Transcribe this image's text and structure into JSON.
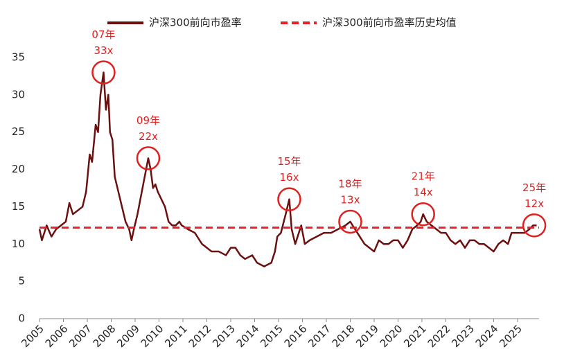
{
  "chart_data": {
    "type": "line",
    "xlim": [
      2005,
      2025.9
    ],
    "xticks": [
      2005,
      2006,
      2007,
      2008,
      2009,
      2010,
      2011,
      2012,
      2013,
      2014,
      2015,
      2016,
      2017,
      2018,
      2019,
      2020,
      2021,
      2022,
      2023,
      2024,
      2025
    ],
    "ylim": [
      0,
      35
    ],
    "yticks": [
      0,
      5,
      10,
      15,
      20,
      25,
      30,
      35
    ],
    "x": [
      2005.0,
      2005.1,
      2005.3,
      2005.5,
      2005.7,
      2005.9,
      2006.1,
      2006.25,
      2006.4,
      2006.6,
      2006.8,
      2006.95,
      2007.1,
      2007.2,
      2007.35,
      2007.45,
      2007.55,
      2007.68,
      2007.78,
      2007.88,
      2007.95,
      2008.05,
      2008.15,
      2008.3,
      2008.45,
      2008.6,
      2008.75,
      2008.85,
      2008.95,
      2009.1,
      2009.25,
      2009.4,
      2009.55,
      2009.65,
      2009.75,
      2009.85,
      2009.95,
      2010.1,
      2010.25,
      2010.4,
      2010.55,
      2010.7,
      2010.85,
      2010.95,
      2011.2,
      2011.5,
      2011.8,
      2012.0,
      2012.2,
      2012.5,
      2012.8,
      2013.0,
      2013.2,
      2013.4,
      2013.6,
      2013.9,
      2014.1,
      2014.4,
      2014.7,
      2014.85,
      2014.95,
      2015.1,
      2015.3,
      2015.45,
      2015.55,
      2015.7,
      2015.85,
      2015.95,
      2016.1,
      2016.3,
      2016.6,
      2016.9,
      2017.2,
      2017.5,
      2017.8,
      2018.0,
      2018.2,
      2018.4,
      2018.6,
      2018.8,
      2019.0,
      2019.2,
      2019.4,
      2019.6,
      2019.8,
      2020.0,
      2020.2,
      2020.4,
      2020.6,
      2020.8,
      2020.95,
      2021.05,
      2021.2,
      2021.4,
      2021.6,
      2021.8,
      2022.0,
      2022.2,
      2022.4,
      2022.6,
      2022.8,
      2023.0,
      2023.2,
      2023.4,
      2023.6,
      2023.8,
      2024.0,
      2024.2,
      2024.4,
      2024.6,
      2024.75,
      2024.9,
      2025.1,
      2025.3,
      2025.5,
      2025.65,
      2025.8
    ],
    "series": [
      {
        "name": "沪深300前向市盈率",
        "color": "#6b0f0f",
        "values": [
          12,
          10.5,
          12.5,
          11,
          12,
          12.5,
          13,
          15.5,
          14,
          14.5,
          15,
          17,
          22,
          21,
          26,
          25,
          30,
          33,
          28,
          30,
          25,
          24,
          19,
          17,
          15,
          13,
          12,
          10.5,
          12,
          14,
          16.5,
          19,
          21.5,
          20,
          17.5,
          18,
          17,
          16,
          15,
          13,
          12.5,
          12.5,
          13,
          12.5,
          12,
          11.5,
          10,
          9.5,
          9,
          9,
          8.5,
          9.5,
          9.5,
          8.5,
          8,
          8.5,
          7.5,
          7,
          7.5,
          9,
          11,
          11.5,
          14,
          16,
          12,
          10,
          11.5,
          12.5,
          10,
          10.5,
          11,
          11.5,
          11.5,
          12,
          12.5,
          13,
          12,
          11,
          10,
          9.5,
          9,
          10.5,
          10,
          10,
          10.5,
          10.5,
          9.5,
          10.5,
          12,
          12.5,
          13,
          14,
          13,
          12.5,
          12,
          11.5,
          11.5,
          10.5,
          10,
          10.5,
          9.5,
          10.5,
          10.5,
          10,
          10,
          9.5,
          9,
          10,
          10.5,
          10,
          11.5,
          11.5,
          11.5,
          11.5,
          12,
          12.5,
          12.5
        ]
      },
      {
        "name": "沪深300前向市盈率历史均值",
        "color": "#e8202a",
        "dashed": true,
        "x": [
          2005.0,
          2025.9
        ],
        "values": [
          12.2,
          12.2
        ]
      }
    ],
    "annotations": [
      {
        "year": "07年",
        "pe": "33x",
        "x": 2007.68,
        "y": 33
      },
      {
        "year": "09年",
        "pe": "22x",
        "x": 2009.55,
        "y": 21.5
      },
      {
        "year": "15年",
        "pe": "16x",
        "x": 2015.45,
        "y": 16
      },
      {
        "year": "18年",
        "pe": "13x",
        "x": 2018.0,
        "y": 13
      },
      {
        "year": "21年",
        "pe": "14x",
        "x": 2021.05,
        "y": 14
      },
      {
        "year": "25年",
        "pe": "12x",
        "x": 2025.7,
        "y": 12.5
      }
    ],
    "annotation_color": "#e0201f"
  }
}
